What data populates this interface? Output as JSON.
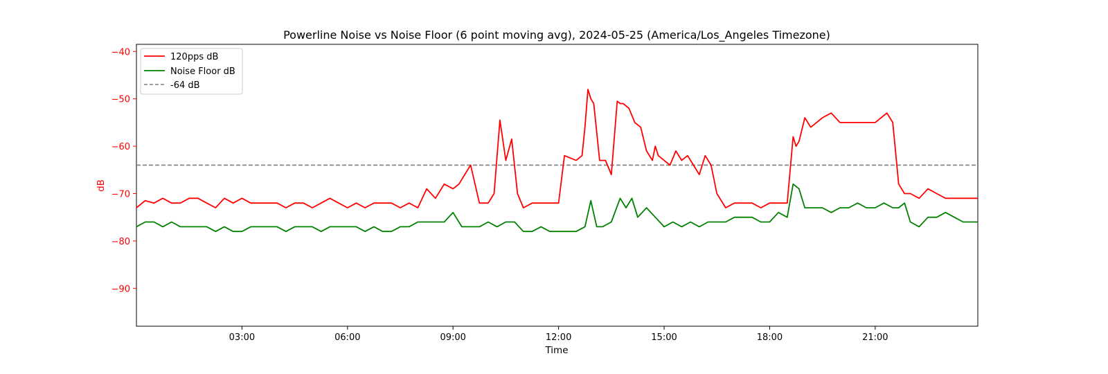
{
  "chart_data": {
    "type": "line",
    "title": "Powerline Noise vs Noise Floor (6 point moving avg), 2024-05-25 (America/Los_Angeles Timezone)",
    "xlabel": "Time",
    "ylabel": "dB",
    "xlim": [
      "00:00",
      "23:55"
    ],
    "ylim": [
      -98,
      -38.5
    ],
    "x_ticks": [
      "03:00",
      "06:00",
      "09:00",
      "12:00",
      "15:00",
      "18:00",
      "21:00"
    ],
    "y_ticks": [
      -40,
      -50,
      -60,
      -70,
      -80,
      -90
    ],
    "grid": false,
    "legend_position": "top-left",
    "colors": {
      "noise": "#ff0000",
      "floor": "#008000",
      "threshold": "#808080",
      "ylabel": "#ff0000"
    },
    "series": [
      {
        "name": "120pps dB",
        "color": "#ff0000",
        "x": [
          "00:00",
          "00:15",
          "00:30",
          "00:45",
          "01:00",
          "01:15",
          "01:30",
          "01:45",
          "02:00",
          "02:15",
          "02:30",
          "02:45",
          "03:00",
          "03:15",
          "03:30",
          "03:45",
          "04:00",
          "04:15",
          "04:30",
          "04:45",
          "05:00",
          "05:15",
          "05:30",
          "05:45",
          "06:00",
          "06:15",
          "06:30",
          "06:45",
          "07:00",
          "07:15",
          "07:30",
          "07:45",
          "08:00",
          "08:15",
          "08:30",
          "08:45",
          "09:00",
          "09:10",
          "09:20",
          "09:30",
          "09:45",
          "10:00",
          "10:10",
          "10:20",
          "10:30",
          "10:40",
          "10:50",
          "11:00",
          "11:15",
          "11:30",
          "11:45",
          "12:00",
          "12:10",
          "12:20",
          "12:30",
          "12:40",
          "12:45",
          "12:50",
          "12:55",
          "13:00",
          "13:10",
          "13:20",
          "13:30",
          "13:40",
          "13:45",
          "13:50",
          "14:00",
          "14:10",
          "14:20",
          "14:30",
          "14:40",
          "14:45",
          "14:50",
          "15:00",
          "15:10",
          "15:20",
          "15:30",
          "15:40",
          "15:50",
          "16:00",
          "16:10",
          "16:20",
          "16:30",
          "16:45",
          "17:00",
          "17:15",
          "17:30",
          "17:45",
          "18:00",
          "18:15",
          "18:30",
          "18:40",
          "18:45",
          "18:50",
          "19:00",
          "19:10",
          "19:20",
          "19:30",
          "19:45",
          "20:00",
          "20:15",
          "20:30",
          "20:45",
          "21:00",
          "21:10",
          "21:20",
          "21:30",
          "21:40",
          "21:50",
          "22:00",
          "22:15",
          "22:30",
          "22:45",
          "23:00",
          "23:15",
          "23:30",
          "23:45",
          "23:55"
        ],
        "y": [
          -73,
          -71.5,
          -72,
          -71,
          -72,
          -72,
          -71,
          -71,
          -72,
          -73,
          -71,
          -72,
          -71,
          -72,
          -72,
          -72,
          -72,
          -73,
          -72,
          -72,
          -73,
          -72,
          -71,
          -72,
          -73,
          -72,
          -73,
          -72,
          -72,
          -72,
          -73,
          -72,
          -73,
          -69,
          -71,
          -68,
          -69,
          -68,
          -66,
          -64,
          -72,
          -72,
          -70,
          -54.5,
          -63,
          -58.5,
          -70,
          -73,
          -72,
          -72,
          -72,
          -72,
          -62,
          -62.5,
          -63,
          -62,
          -56,
          -48,
          -50,
          -51,
          -63,
          -63,
          -66,
          -50.5,
          -51,
          -51,
          -52,
          -55,
          -56,
          -61,
          -63,
          -60,
          -62,
          -63,
          -64,
          -61,
          -63,
          -62,
          -64,
          -66,
          -62,
          -64,
          -70,
          -73,
          -72,
          -72,
          -72,
          -73,
          -72,
          -72,
          -72,
          -58,
          -60,
          -59,
          -54,
          -56,
          -55,
          -54,
          -53,
          -55,
          -55,
          -55,
          -55,
          -55,
          -54,
          -53,
          -55,
          -68,
          -70,
          -70,
          -71,
          -69,
          -70,
          -71,
          -71,
          -71,
          -71,
          -71
        ]
      },
      {
        "name": "Noise Floor dB",
        "color": "#008000",
        "x": [
          "00:00",
          "00:15",
          "00:30",
          "00:45",
          "01:00",
          "01:15",
          "01:30",
          "01:45",
          "02:00",
          "02:15",
          "02:30",
          "02:45",
          "03:00",
          "03:15",
          "03:30",
          "03:45",
          "04:00",
          "04:15",
          "04:30",
          "04:45",
          "05:00",
          "05:15",
          "05:30",
          "05:45",
          "06:00",
          "06:15",
          "06:30",
          "06:45",
          "07:00",
          "07:15",
          "07:30",
          "07:45",
          "08:00",
          "08:15",
          "08:30",
          "08:45",
          "09:00",
          "09:15",
          "09:30",
          "09:45",
          "10:00",
          "10:15",
          "10:30",
          "10:45",
          "11:00",
          "11:15",
          "11:30",
          "11:45",
          "12:00",
          "12:15",
          "12:30",
          "12:45",
          "12:55",
          "13:05",
          "13:15",
          "13:30",
          "13:45",
          "13:55",
          "14:05",
          "14:15",
          "14:30",
          "14:45",
          "15:00",
          "15:15",
          "15:30",
          "15:45",
          "16:00",
          "16:15",
          "16:30",
          "16:45",
          "17:00",
          "17:15",
          "17:30",
          "17:45",
          "18:00",
          "18:15",
          "18:30",
          "18:40",
          "18:50",
          "19:00",
          "19:10",
          "19:20",
          "19:30",
          "19:45",
          "20:00",
          "20:15",
          "20:30",
          "20:45",
          "21:00",
          "21:15",
          "21:30",
          "21:40",
          "21:50",
          "22:00",
          "22:15",
          "22:30",
          "22:45",
          "23:00",
          "23:15",
          "23:30",
          "23:45",
          "23:55"
        ],
        "y": [
          -77,
          -76,
          -76,
          -77,
          -76,
          -77,
          -77,
          -77,
          -77,
          -78,
          -77,
          -78,
          -78,
          -77,
          -77,
          -77,
          -77,
          -78,
          -77,
          -77,
          -77,
          -78,
          -77,
          -77,
          -77,
          -77,
          -78,
          -77,
          -78,
          -78,
          -77,
          -77,
          -76,
          -76,
          -76,
          -76,
          -74,
          -77,
          -77,
          -77,
          -76,
          -77,
          -76,
          -76,
          -78,
          -78,
          -77,
          -78,
          -78,
          -78,
          -78,
          -77,
          -71.5,
          -77,
          -77,
          -76,
          -71,
          -73,
          -71,
          -75,
          -73,
          -75,
          -77,
          -76,
          -77,
          -76,
          -77,
          -76,
          -76,
          -76,
          -75,
          -75,
          -75,
          -76,
          -76,
          -74,
          -75,
          -68,
          -69,
          -73,
          -73,
          -73,
          -73,
          -74,
          -73,
          -73,
          -72,
          -73,
          -73,
          -72,
          -73,
          -73,
          -72,
          -76,
          -77,
          -75,
          -75,
          -74,
          -75,
          -76,
          -76,
          -76
        ]
      }
    ],
    "reference_line": {
      "name": "-64 dB",
      "y": -64,
      "color": "#808080",
      "style": "dashed"
    }
  }
}
